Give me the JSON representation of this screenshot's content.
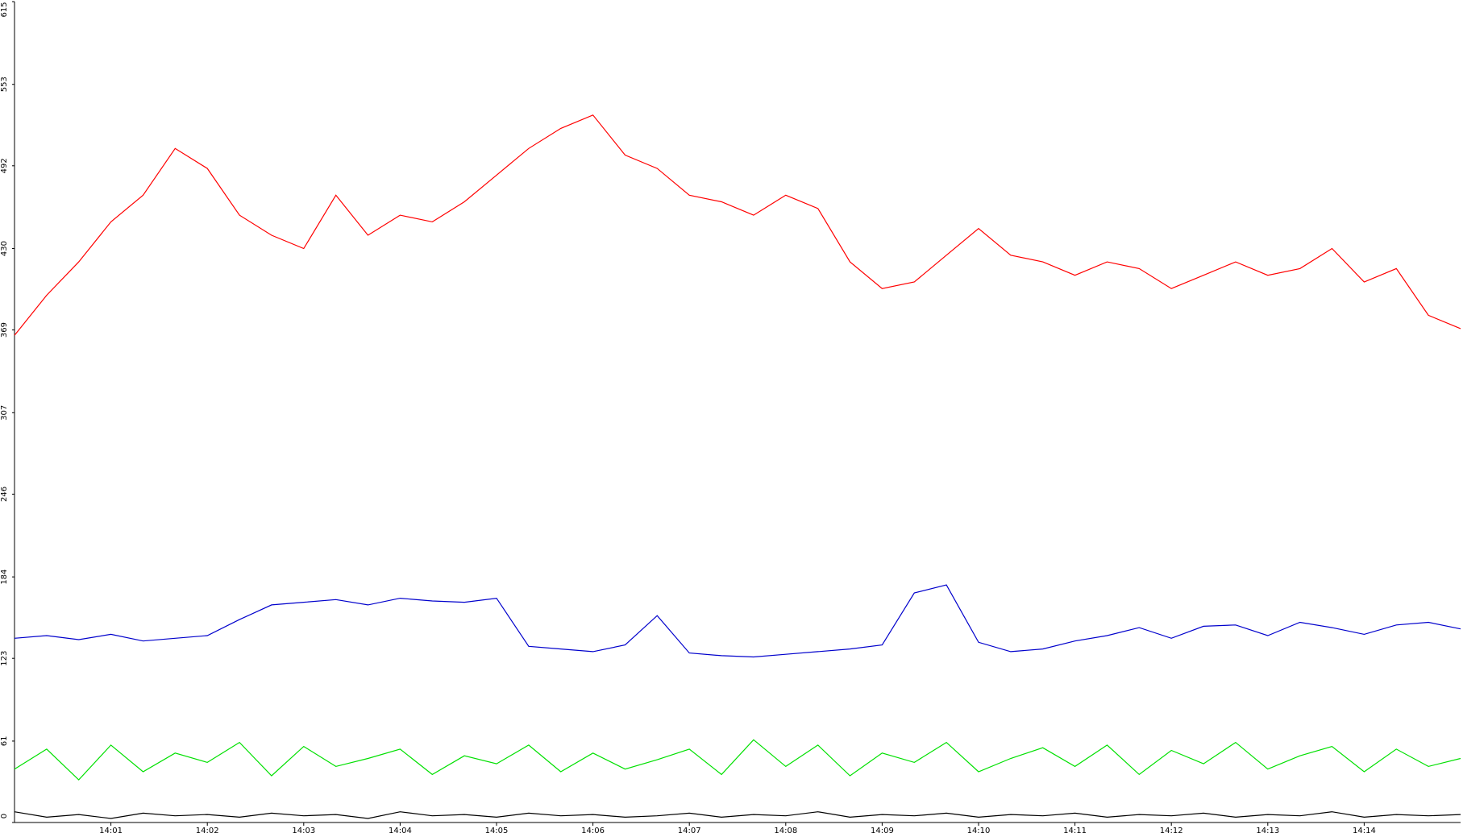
{
  "chart_data": {
    "type": "line",
    "categories": [
      null,
      null,
      null,
      "14:01",
      null,
      null,
      "14:02",
      null,
      null,
      "14:03",
      null,
      null,
      "14:04",
      null,
      null,
      "14:05",
      null,
      null,
      "14:06",
      null,
      null,
      "14:07",
      null,
      null,
      "14:08",
      null,
      null,
      "14:09",
      null,
      null,
      "14:10",
      null,
      null,
      "14:11",
      null,
      null,
      "14:12",
      null,
      null,
      "14:13",
      null,
      null,
      "14:14",
      null,
      null,
      null
    ],
    "series": [
      {
        "color": "#ff0000",
        "values": [
          365,
          395,
          420,
          450,
          470,
          505,
          490,
          455,
          440,
          430,
          470,
          440,
          455,
          450,
          465,
          485,
          505,
          520,
          530,
          500,
          490,
          470,
          465,
          455,
          470,
          460,
          420,
          400,
          405,
          425,
          445,
          425,
          420,
          410,
          420,
          415,
          400,
          410,
          420,
          410,
          415,
          430,
          405,
          415,
          380,
          370
        ]
      },
      {
        "color": "#0000cc",
        "values": [
          138,
          140,
          137,
          141,
          136,
          138,
          140,
          152,
          163,
          165,
          167,
          163,
          168,
          166,
          165,
          168,
          132,
          130,
          128,
          133,
          155,
          127,
          125,
          124,
          126,
          128,
          130,
          133,
          172,
          178,
          135,
          128,
          130,
          136,
          140,
          146,
          138,
          147,
          148,
          140,
          150,
          146,
          141,
          148,
          150,
          145
        ]
      },
      {
        "color": "#00e000",
        "values": [
          40,
          55,
          32,
          58,
          38,
          52,
          45,
          60,
          35,
          57,
          42,
          48,
          55,
          36,
          50,
          44,
          58,
          38,
          52,
          40,
          47,
          55,
          36,
          62,
          42,
          58,
          35,
          52,
          45,
          60,
          38,
          48,
          56,
          42,
          58,
          36,
          54,
          44,
          60,
          40,
          50,
          57,
          38,
          55,
          42,
          48
        ]
      },
      {
        "color": "#000000",
        "values": [
          8,
          4,
          6,
          3,
          7,
          5,
          6,
          4,
          7,
          5,
          6,
          3,
          8,
          5,
          6,
          4,
          7,
          5,
          6,
          4,
          5,
          7,
          4,
          6,
          5,
          8,
          4,
          6,
          5,
          7,
          4,
          6,
          5,
          7,
          4,
          6,
          5,
          7,
          4,
          6,
          5,
          8,
          4,
          6,
          5,
          6
        ]
      }
    ],
    "ylim": [
      0,
      615
    ],
    "yticks": [
      0,
      61,
      123,
      184,
      246,
      307,
      369,
      430,
      492,
      553,
      615
    ]
  }
}
